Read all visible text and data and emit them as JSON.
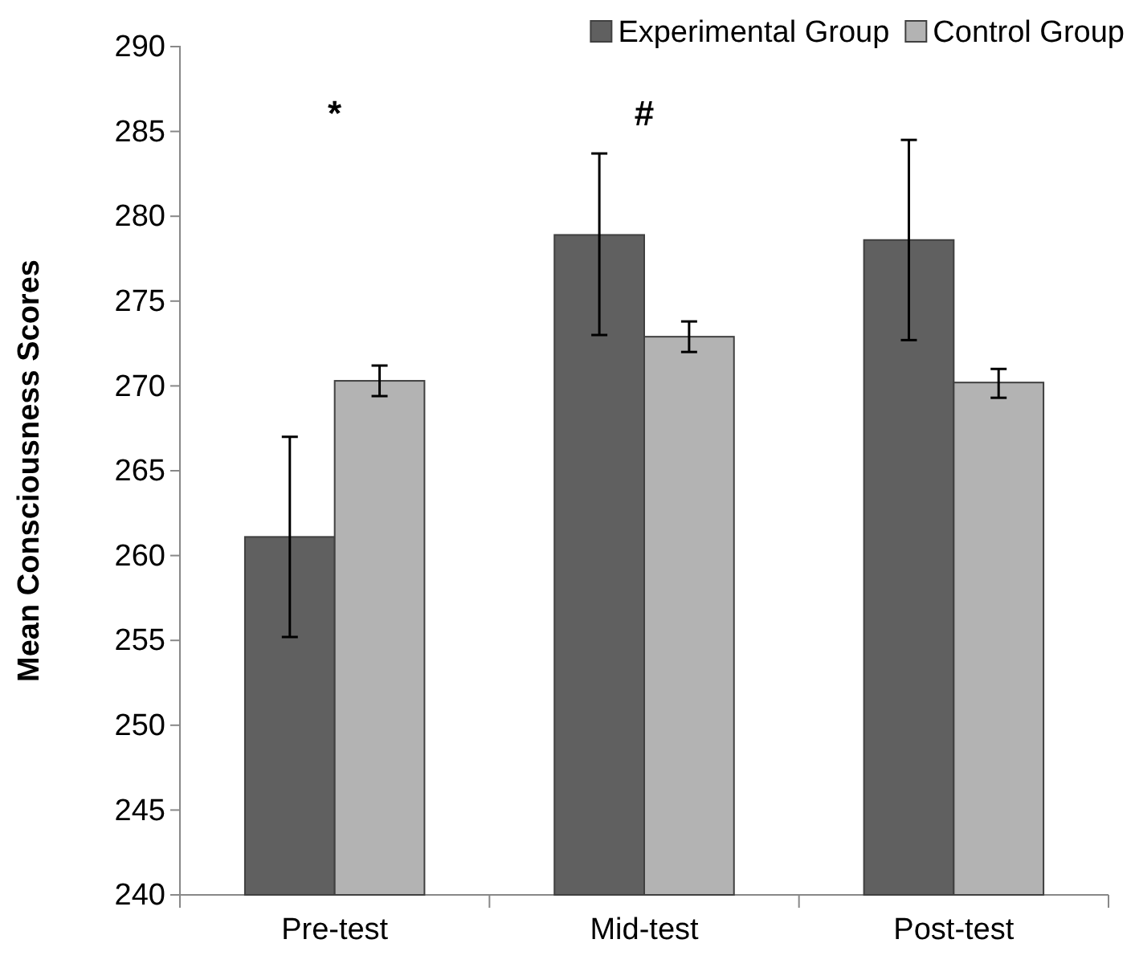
{
  "chart_data": {
    "type": "bar",
    "ylabel": "Mean Consciousness Scores",
    "categories": [
      "Pre-test",
      "Mid-test",
      "Post-test"
    ],
    "series": [
      {
        "name": "Experimental Group",
        "color": "#606060",
        "values": [
          261.1,
          278.9,
          278.6
        ],
        "errors": [
          [
            255.2,
            267.0
          ],
          [
            273.0,
            283.7
          ],
          [
            272.7,
            284.5
          ]
        ]
      },
      {
        "name": "Control Group",
        "color": "#b3b3b3",
        "values": [
          270.3,
          272.9,
          270.2
        ],
        "errors": [
          [
            269.4,
            271.2
          ],
          [
            272.0,
            273.8
          ],
          [
            269.3,
            271.0
          ]
        ]
      }
    ],
    "ylim": [
      240,
      290
    ],
    "yticks": [
      240,
      245,
      250,
      255,
      260,
      265,
      270,
      275,
      280,
      285,
      290
    ],
    "grid": false,
    "legend": "top right",
    "annotations": [
      "*",
      "#"
    ]
  }
}
